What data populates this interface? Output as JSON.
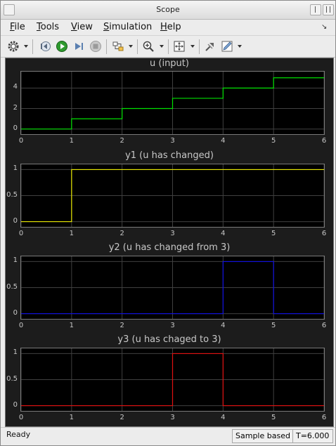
{
  "window": {
    "title": "Scope"
  },
  "menu": [
    {
      "mnemonic": "F",
      "rest": "ile"
    },
    {
      "mnemonic": "T",
      "rest": "ools"
    },
    {
      "mnemonic": "V",
      "rest": "iew"
    },
    {
      "mnemonic": "S",
      "rest": "imulation"
    },
    {
      "mnemonic": "H",
      "rest": "elp"
    }
  ],
  "toolbar_icons": [
    "gear-icon",
    "back-step-icon",
    "run-icon",
    "step-forward-icon",
    "stop-icon",
    "highlight-block-icon",
    "zoom-in-icon",
    "autoscale-icon",
    "restore-view-icon",
    "edit-icon"
  ],
  "colors": {
    "u": "#00e000",
    "y1": "#e8e800",
    "y2": "#1010e0",
    "y3": "#e01010",
    "background": "#000000",
    "grid": "#404040"
  },
  "chart_data": [
    {
      "type": "line",
      "title": "u (input)",
      "step": true,
      "x": [
        0,
        1,
        2,
        3,
        4,
        5,
        6
      ],
      "y": [
        0,
        1,
        2,
        3,
        4,
        5,
        5
      ],
      "xlim": [
        0,
        6
      ],
      "ylim": [
        -0.5,
        5.6
      ],
      "yticks": [
        0,
        2,
        4
      ],
      "xticks": [
        0,
        1,
        2,
        3,
        4,
        5,
        6
      ],
      "color": "#00e000",
      "grid": true
    },
    {
      "type": "line",
      "title": "y1 (u has changed)",
      "step": true,
      "x": [
        0,
        1,
        6
      ],
      "y": [
        0,
        1,
        1
      ],
      "xlim": [
        0,
        6
      ],
      "ylim": [
        -0.1,
        1.1
      ],
      "yticks": [
        0,
        0.5,
        1
      ],
      "xticks": [
        0,
        1,
        2,
        3,
        4,
        5,
        6
      ],
      "color": "#e8e800",
      "grid": true
    },
    {
      "type": "line",
      "title": "y2 (u has changed from 3)",
      "step": true,
      "x": [
        0,
        4,
        5,
        6
      ],
      "y": [
        0,
        1,
        0,
        0
      ],
      "xlim": [
        0,
        6
      ],
      "ylim": [
        -0.1,
        1.1
      ],
      "yticks": [
        0,
        0.5,
        1
      ],
      "xticks": [
        0,
        1,
        2,
        3,
        4,
        5,
        6
      ],
      "color": "#1010e0",
      "grid": true
    },
    {
      "type": "line",
      "title": "y3 (u has chaged to 3)",
      "step": true,
      "x": [
        0,
        3,
        4,
        6
      ],
      "y": [
        0,
        1,
        0,
        0
      ],
      "xlim": [
        0,
        6
      ],
      "ylim": [
        -0.1,
        1.1
      ],
      "yticks": [
        0,
        0.5,
        1
      ],
      "xticks": [
        0,
        1,
        2,
        3,
        4,
        5,
        6
      ],
      "color": "#e01010",
      "grid": true
    }
  ],
  "status": {
    "text": "Ready",
    "mode": "Sample based",
    "time": "T=6.000"
  }
}
